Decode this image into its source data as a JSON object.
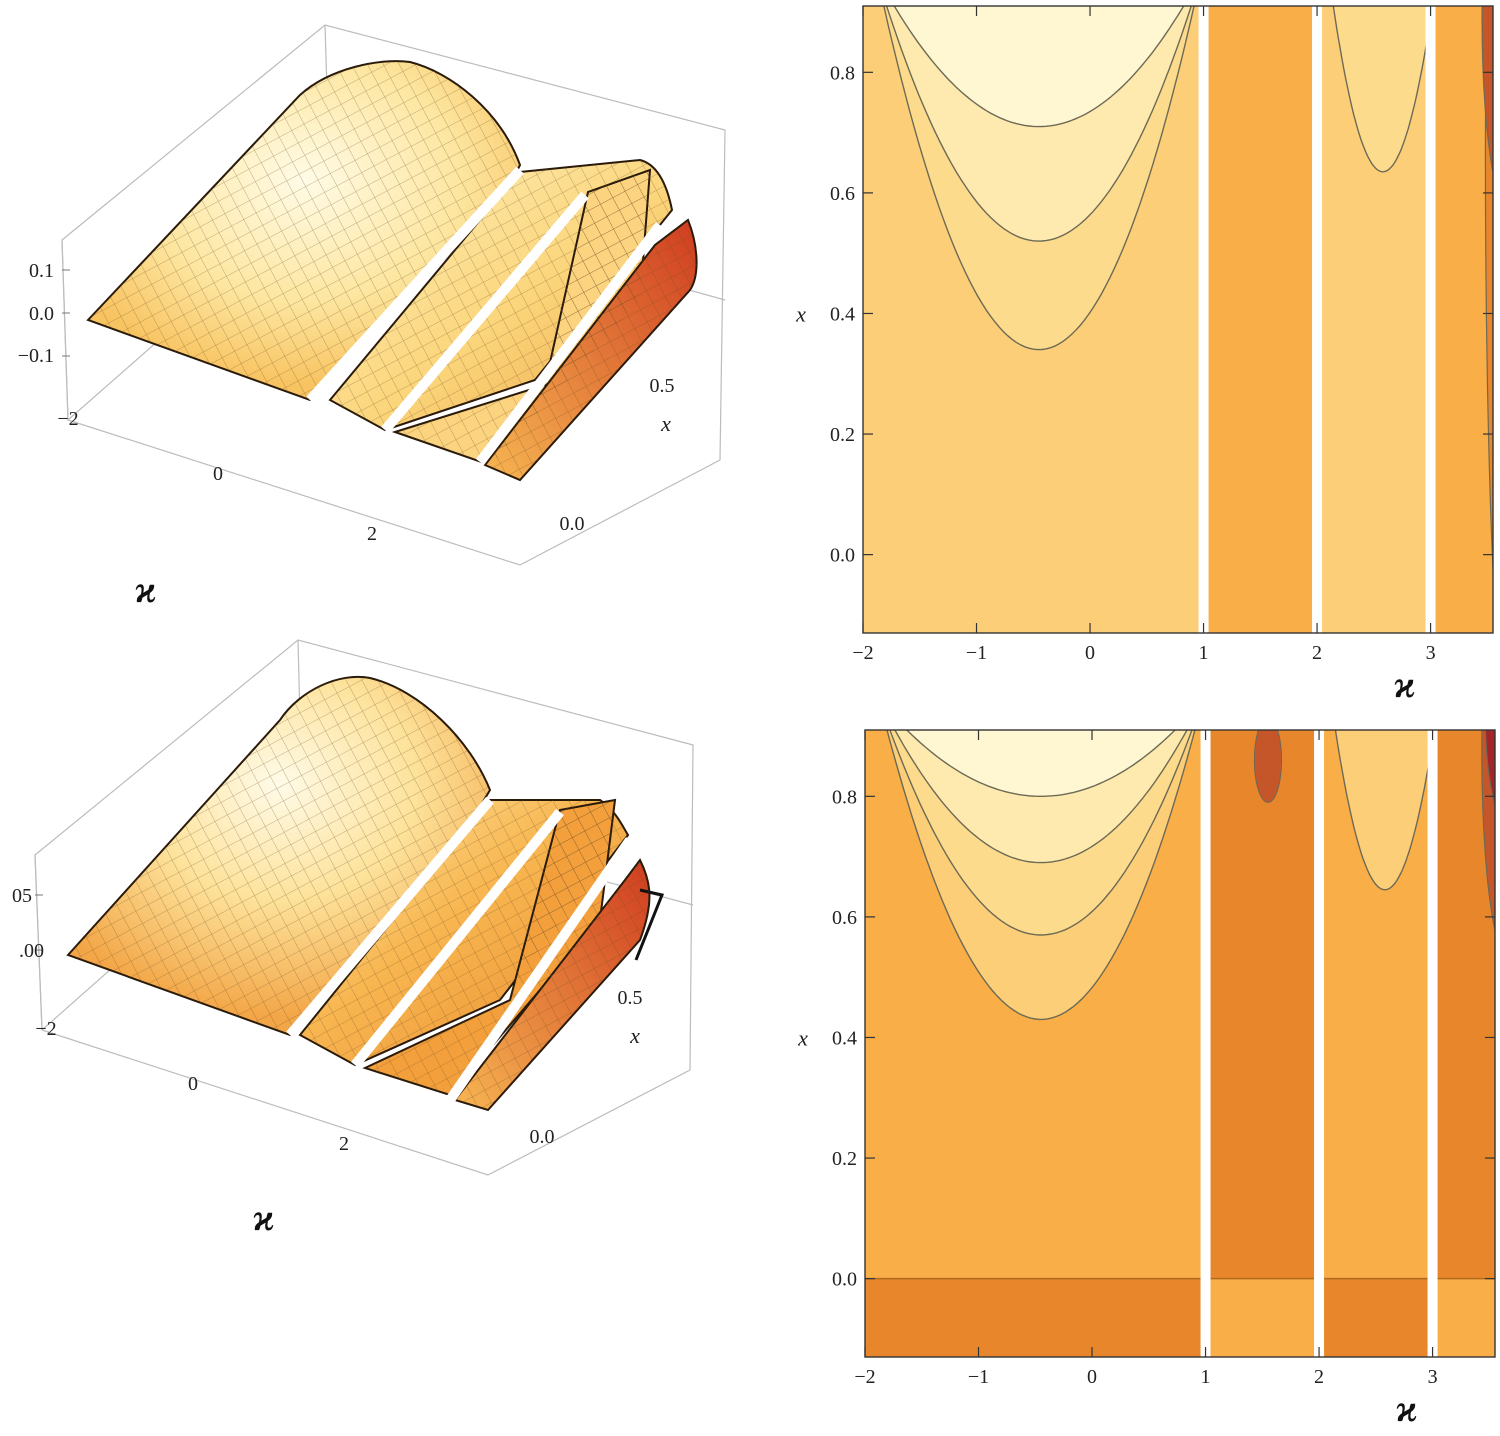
{
  "colors": {
    "level1": "#fff6d2",
    "level2": "#feeaae",
    "level3": "#fddb8c",
    "level4": "#fcce78",
    "level5": "#f9ae48",
    "level6": "#e8862c",
    "level7": "#c4562a",
    "level8": "#a3252a",
    "contour_line": "#6d6a55"
  },
  "chart_data": [
    {
      "type": "surface3d",
      "panel": "top-left",
      "xlabel": "ϰ",
      "ylabel": "x",
      "x_ticks": [
        "−2",
        "0",
        "2"
      ],
      "y_ticks": [
        "0.0",
        "0.5"
      ],
      "z_ticks": [
        "0.1",
        "0.0",
        "−0.1"
      ],
      "x_range": [
        -2,
        3.5
      ],
      "y_range": [
        -0.13,
        0.9
      ],
      "peak_value": 0.17,
      "gaps_at_kappa": [
        1,
        2,
        3
      ]
    },
    {
      "type": "heatmap",
      "panel": "top-right",
      "subtype": "contour",
      "xlabel": "ϰ",
      "ylabel": "x",
      "x_ticks": [
        "−2",
        "−1",
        "0",
        "1",
        "2",
        "3"
      ],
      "y_ticks": [
        "0.0",
        "0.2",
        "0.4",
        "0.6",
        "0.8"
      ],
      "xlim": [
        -2,
        3.55
      ],
      "ylim": [
        -0.13,
        0.91
      ],
      "gaps_at_kappa": [
        1,
        2,
        3
      ],
      "regions": [
        {
          "x": [
            -2,
            1
          ],
          "y": [
            -0.13,
            0.91
          ],
          "level": 4
        },
        {
          "x": [
            1,
            2
          ],
          "y": [
            -0.13,
            0.91
          ],
          "level": 5
        },
        {
          "x": [
            2,
            3
          ],
          "y": [
            -0.13,
            0.91
          ],
          "level": 4
        },
        {
          "x": [
            3,
            3.55
          ],
          "y": [
            -0.13,
            0.91
          ],
          "level": 5
        }
      ],
      "contours": [
        {
          "x_range": [
            -2,
            1
          ],
          "center": -0.45,
          "y_min": 0.34,
          "level": 3
        },
        {
          "x_range": [
            -2,
            1
          ],
          "center": -0.45,
          "y_min": 0.52,
          "level": 2
        },
        {
          "x_range": [
            -2,
            1
          ],
          "center": -0.45,
          "y_min": 0.71,
          "level": 1
        },
        {
          "x_range": [
            2,
            3
          ],
          "center": 2.58,
          "y_min": 0.635,
          "level": 3
        }
      ],
      "edge_bands": [
        {
          "x_from": 3.5,
          "level": 6
        },
        {
          "x_from": 3.47,
          "level": 7,
          "y_from": 0.6
        }
      ]
    },
    {
      "type": "surface3d",
      "panel": "bottom-left",
      "xlabel": "ϰ",
      "ylabel": "x",
      "x_ticks": [
        "−2",
        "0",
        "2"
      ],
      "y_ticks": [
        "0.0",
        "0.5"
      ],
      "z_ticks": [
        "05",
        ".00"
      ],
      "x_range": [
        -2,
        3.5
      ],
      "y_range": [
        -0.13,
        0.9
      ],
      "peak_value": 0.09,
      "gaps_at_kappa": [
        1,
        2,
        3
      ]
    },
    {
      "type": "heatmap",
      "panel": "bottom-right",
      "subtype": "contour",
      "xlabel": "ϰ",
      "ylabel": "x",
      "x_ticks": [
        "−2",
        "−1",
        "0",
        "1",
        "2",
        "3"
      ],
      "y_ticks": [
        "0.0",
        "0.2",
        "0.4",
        "0.6",
        "0.8"
      ],
      "xlim": [
        -2,
        3.55
      ],
      "ylim": [
        -0.13,
        0.91
      ],
      "gaps_at_kappa": [
        1,
        2,
        3
      ],
      "regions": [
        {
          "x": [
            -2,
            1
          ],
          "y": [
            0,
            0.91
          ],
          "level": 5
        },
        {
          "x": [
            1,
            2
          ],
          "y": [
            0,
            0.91
          ],
          "level": 6
        },
        {
          "x": [
            2,
            3
          ],
          "y": [
            0,
            0.91
          ],
          "level": 5
        },
        {
          "x": [
            3,
            3.55
          ],
          "y": [
            0,
            0.91
          ],
          "level": 6
        },
        {
          "x": [
            -2,
            1
          ],
          "y": [
            -0.13,
            0
          ],
          "level": 6
        },
        {
          "x": [
            1,
            2
          ],
          "y": [
            -0.13,
            0
          ],
          "level": 5
        },
        {
          "x": [
            2,
            3
          ],
          "y": [
            -0.13,
            0
          ],
          "level": 6
        },
        {
          "x": [
            3,
            3.55
          ],
          "y": [
            -0.13,
            0
          ],
          "level": 5
        }
      ],
      "contours": [
        {
          "x_range": [
            -2,
            1
          ],
          "center": -0.45,
          "y_min": 0.43,
          "level": 4
        },
        {
          "x_range": [
            -2,
            1
          ],
          "center": -0.45,
          "y_min": 0.57,
          "level": 3
        },
        {
          "x_range": [
            -2,
            1
          ],
          "center": -0.45,
          "y_min": 0.69,
          "level": 2
        },
        {
          "x_range": [
            -2,
            1
          ],
          "center": -0.45,
          "y_min": 0.8,
          "level": 1
        },
        {
          "x_range": [
            2,
            3
          ],
          "center": 2.58,
          "y_min": 0.645,
          "level": 4
        }
      ],
      "spots": [
        {
          "x": 1.55,
          "y": 0.86,
          "rx": 0.12,
          "ry": 0.07,
          "level": 7
        }
      ],
      "edge_bands": [
        {
          "x_from": 3.45,
          "level": 7,
          "y_from": 0.55
        },
        {
          "x_from": 3.48,
          "level": 8,
          "y_from": 0.75
        }
      ]
    }
  ]
}
